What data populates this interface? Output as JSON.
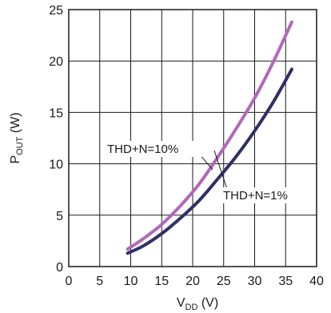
{
  "chart_data": {
    "type": "line",
    "xlabel": {
      "main": "V",
      "sub": "DD",
      "unit": " (V)"
    },
    "ylabel": {
      "main": "P",
      "sub": "OUT",
      "unit": " (W)"
    },
    "xlim": [
      0,
      40
    ],
    "ylim": [
      0,
      25
    ],
    "xticks": [
      0,
      5,
      10,
      15,
      20,
      25,
      30,
      35,
      40
    ],
    "yticks": [
      0,
      5,
      10,
      15,
      20,
      25
    ],
    "grid": true,
    "series": [
      {
        "name": "THD+N=10%",
        "color": "#b069b8",
        "x": [
          9.5,
          12,
          15,
          18,
          21,
          24,
          27,
          30,
          33,
          36
        ],
        "y": [
          1.7,
          2.7,
          4.1,
          5.9,
          8.0,
          10.6,
          13.4,
          16.4,
          19.9,
          23.8
        ]
      },
      {
        "name": "THD+N=1%",
        "color": "#302f66",
        "x": [
          9.5,
          12,
          15,
          18,
          21,
          24,
          27,
          30,
          33,
          36
        ],
        "y": [
          1.3,
          2.0,
          3.2,
          4.7,
          6.4,
          8.5,
          10.7,
          13.2,
          16.0,
          19.2
        ]
      }
    ]
  }
}
